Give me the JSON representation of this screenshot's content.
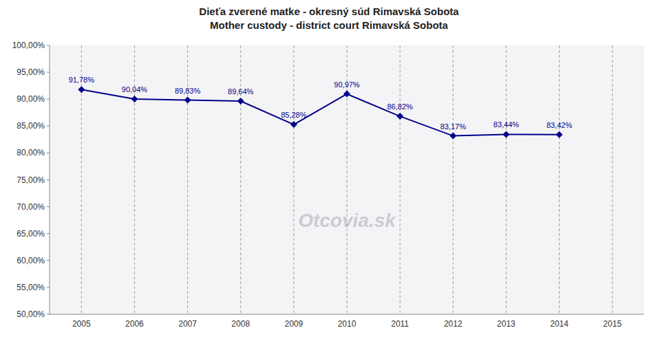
{
  "chart_data": {
    "type": "line",
    "title": "Dieťa zverené matke - okresný súd Rimavská Sobota",
    "subtitle": "Mother custody - district court Rimavská Sobota",
    "x": [
      2005,
      2006,
      2007,
      2008,
      2009,
      2010,
      2011,
      2012,
      2013,
      2014
    ],
    "values": [
      91.78,
      90.04,
      89.83,
      89.64,
      85.28,
      90.97,
      86.82,
      83.17,
      83.44,
      83.42
    ],
    "value_labels": [
      "91,78%",
      "90,04%",
      "89,83%",
      "89,64%",
      "85,28%",
      "90,97%",
      "86,82%",
      "83,17%",
      "83,44%",
      "83,42%"
    ],
    "data_labels": true,
    "color": "#00008B",
    "marker": "diamond",
    "xlim": [
      2004.4,
      2015.6
    ],
    "xticks": [
      2005,
      2006,
      2007,
      2008,
      2009,
      2010,
      2011,
      2012,
      2013,
      2014,
      2015
    ],
    "ylim": [
      50,
      100
    ],
    "yticks": [
      {
        "value": 50,
        "label": "50,00%"
      },
      {
        "value": 55,
        "label": "55,00%"
      },
      {
        "value": 60,
        "label": "60,00%"
      },
      {
        "value": 65,
        "label": "65,00%"
      },
      {
        "value": 70,
        "label": "70,00%"
      },
      {
        "value": 75,
        "label": "75,00%"
      },
      {
        "value": 80,
        "label": "80,00%"
      },
      {
        "value": 85,
        "label": "85,00%"
      },
      {
        "value": 90,
        "label": "90,00%"
      },
      {
        "value": 95,
        "label": "95,00%"
      },
      {
        "value": 100,
        "label": "100,00%"
      }
    ],
    "grid": "x",
    "annotations": [
      "Otcovia.sk"
    ]
  }
}
